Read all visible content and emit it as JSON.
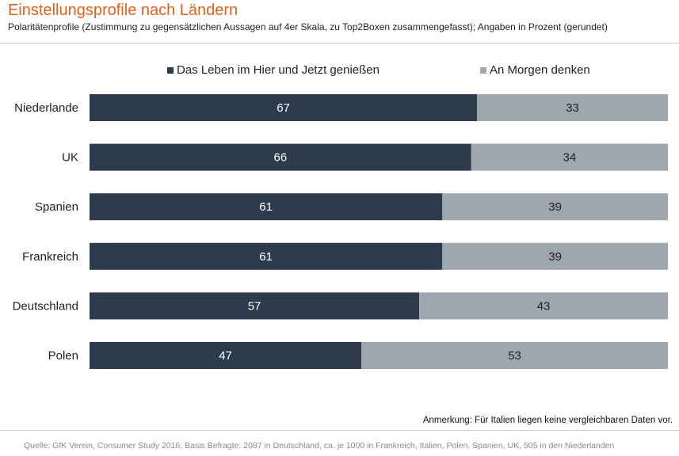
{
  "title": "Einstellungsprofile  nach Ländern",
  "subtitle": "Polaritätenprofile  (Zustimmung zu gegensätzlichen Aussagen auf 4er Skala, zu Top2Boxen  zusammengefasst);  Angaben in Prozent (gerundet)",
  "note": "Anmerkung:  Für Italien liegen keine vergleichbaren Daten vor.",
  "source": "Quelle:  GfK Verein, Consumer Study 2016; Basis Befragte: 2087 in Deutschland, ca. je  1000 in Frankreich, Italien,  Polen,  Spanien, UK, 505 in den Niederlanden",
  "chart_data": {
    "type": "bar",
    "orientation": "horizontal",
    "stacked": true,
    "legend_position": "top",
    "grid": false,
    "xlim": [
      0,
      100
    ],
    "categories": [
      "Niederlande",
      "UK",
      "Spanien",
      "Frankreich",
      "Deutschland",
      "Polen"
    ],
    "series": [
      {
        "name": "Das Leben im Hier und Jetzt genießen",
        "color": "#2e3b4c",
        "label_color": "#ffffff",
        "values": [
          67,
          66,
          61,
          61,
          57,
          47
        ]
      },
      {
        "name": "An Morgen denken",
        "color": "#9ea6ae",
        "label_color": "#222222",
        "values": [
          33,
          34,
          39,
          39,
          43,
          53
        ]
      }
    ]
  }
}
